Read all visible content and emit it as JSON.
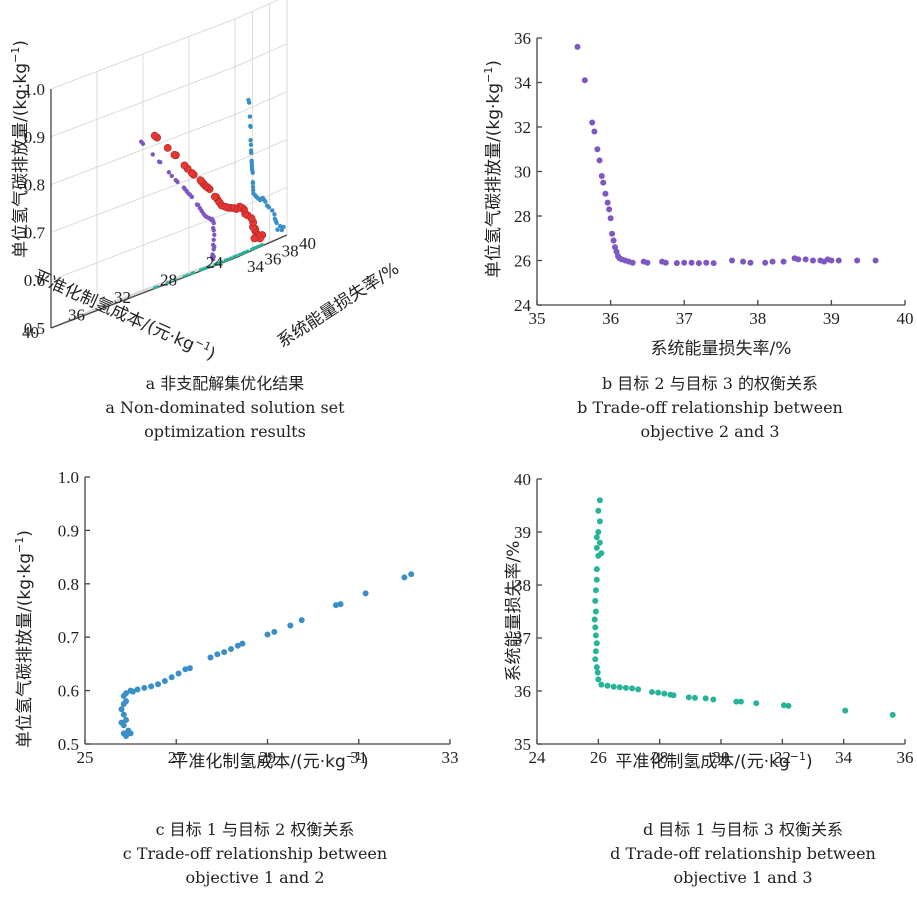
{
  "chart_data": [
    {
      "id": "a",
      "type": "scatter3d",
      "xlabel": "系统能量损失率/%",
      "ylabel": "平准化制氢成本/(元·kg",
      "zlabel": "单位氢气碳排放量/(kg·kg",
      "label_superscript": "−1",
      "x_ticks": [
        "34",
        "36",
        "38",
        "40"
      ],
      "y_ticks": [
        "24",
        "28",
        "32",
        "36",
        "40"
      ],
      "z_ticks": [
        "0.5",
        "0.6",
        "0.7",
        "0.8",
        "0.9",
        "1.0"
      ],
      "xlim": [
        34,
        40
      ],
      "ylim": [
        24,
        40
      ],
      "zlim": [
        0.5,
        1.0
      ],
      "caption": [
        "a  非支配解集优化结果",
        "a  Non-dominated solution set",
        "optimization results"
      ],
      "colors": {
        "points": "#e53935",
        "proj_x": "#7e57c2",
        "proj_y": "#3a8fc9",
        "proj_floor": "#26b39a"
      }
    },
    {
      "id": "b",
      "type": "scatter",
      "xlabel": "系统能量损失率/%",
      "ylabel": "单位氢气碳排放量/(kg·kg",
      "label_superscript": "−1",
      "x_ticks": [
        "35",
        "36",
        "37",
        "38",
        "39",
        "40"
      ],
      "y_ticks": [
        "24",
        "26",
        "28",
        "30",
        "32",
        "34",
        "36"
      ],
      "xlim": [
        35,
        40
      ],
      "ylim": [
        24,
        36
      ],
      "color": "#7e57c2",
      "points": [
        [
          35.55,
          35.6
        ],
        [
          35.65,
          34.1
        ],
        [
          35.75,
          32.2
        ],
        [
          35.78,
          31.8
        ],
        [
          35.82,
          31.0
        ],
        [
          35.85,
          30.5
        ],
        [
          35.88,
          29.8
        ],
        [
          35.9,
          29.5
        ],
        [
          35.93,
          29.0
        ],
        [
          35.96,
          28.6
        ],
        [
          35.98,
          28.3
        ],
        [
          36.0,
          27.9
        ],
        [
          36.02,
          27.2
        ],
        [
          36.04,
          26.9
        ],
        [
          36.06,
          26.6
        ],
        [
          36.08,
          26.4
        ],
        [
          36.1,
          26.2
        ],
        [
          36.12,
          26.1
        ],
        [
          36.15,
          26.05
        ],
        [
          36.2,
          26.0
        ],
        [
          36.25,
          25.95
        ],
        [
          36.3,
          25.9
        ],
        [
          36.45,
          25.95
        ],
        [
          36.5,
          25.9
        ],
        [
          36.7,
          25.95
        ],
        [
          36.75,
          25.9
        ],
        [
          36.9,
          25.88
        ],
        [
          37.0,
          25.9
        ],
        [
          37.1,
          25.9
        ],
        [
          37.2,
          25.88
        ],
        [
          37.3,
          25.9
        ],
        [
          37.4,
          25.88
        ],
        [
          37.65,
          26.0
        ],
        [
          37.8,
          25.95
        ],
        [
          37.9,
          25.9
        ],
        [
          38.1,
          25.9
        ],
        [
          38.2,
          25.95
        ],
        [
          38.35,
          25.95
        ],
        [
          38.5,
          26.1
        ],
        [
          38.55,
          26.05
        ],
        [
          38.65,
          26.05
        ],
        [
          38.75,
          26.0
        ],
        [
          38.85,
          26.0
        ],
        [
          38.9,
          25.95
        ],
        [
          38.95,
          26.05
        ],
        [
          39.0,
          26.0
        ],
        [
          39.1,
          26.0
        ],
        [
          39.35,
          26.0
        ],
        [
          39.6,
          26.0
        ]
      ],
      "caption": [
        "b  目标 2 与目标 3 的权衡关系",
        "b  Trade-off relationship between",
        "objective 2 and 3"
      ]
    },
    {
      "id": "c",
      "type": "scatter",
      "xlabel": "平准化制氢成本/(元·kg",
      "ylabel": "单位氢气碳排放量/(kg·kg",
      "label_superscript": "−1",
      "x_ticks": [
        "25",
        "27",
        "29",
        "31",
        "33"
      ],
      "y_ticks": [
        "0.5",
        "0.6",
        "0.7",
        "0.8",
        "0.9",
        "1.0"
      ],
      "xlim": [
        25,
        33
      ],
      "ylim": [
        0.5,
        1.0
      ],
      "color": "#3a8fc9",
      "points": [
        [
          25.85,
          0.52
        ],
        [
          25.9,
          0.515
        ],
        [
          25.95,
          0.525
        ],
        [
          26.0,
          0.52
        ],
        [
          25.85,
          0.535
        ],
        [
          25.8,
          0.54
        ],
        [
          25.9,
          0.545
        ],
        [
          25.85,
          0.555
        ],
        [
          25.8,
          0.565
        ],
        [
          25.85,
          0.575
        ],
        [
          25.9,
          0.58
        ],
        [
          25.85,
          0.59
        ],
        [
          25.9,
          0.595
        ],
        [
          26.0,
          0.6
        ],
        [
          26.05,
          0.598
        ],
        [
          26.15,
          0.602
        ],
        [
          26.3,
          0.605
        ],
        [
          26.45,
          0.608
        ],
        [
          26.6,
          0.612
        ],
        [
          26.75,
          0.618
        ],
        [
          26.9,
          0.625
        ],
        [
          27.05,
          0.632
        ],
        [
          27.2,
          0.64
        ],
        [
          27.3,
          0.642
        ],
        [
          27.75,
          0.662
        ],
        [
          27.9,
          0.668
        ],
        [
          28.05,
          0.672
        ],
        [
          28.2,
          0.678
        ],
        [
          28.35,
          0.684
        ],
        [
          28.45,
          0.688
        ],
        [
          29.0,
          0.705
        ],
        [
          29.15,
          0.71
        ],
        [
          29.5,
          0.722
        ],
        [
          29.75,
          0.732
        ],
        [
          30.5,
          0.76
        ],
        [
          30.6,
          0.762
        ],
        [
          31.15,
          0.782
        ],
        [
          32.0,
          0.812
        ],
        [
          32.15,
          0.818
        ]
      ],
      "caption": [
        "c  目标 1 与目标 2 权衡关系",
        "c  Trade-off relationship between",
        "objective 1 and 2"
      ]
    },
    {
      "id": "d",
      "type": "scatter",
      "xlabel": "平准化制氢成本/(元·kg",
      "ylabel": "系统能量损失率/%",
      "label_superscript": "−1",
      "x_ticks": [
        "24",
        "26",
        "28",
        "30",
        "32",
        "34",
        "36"
      ],
      "y_ticks": [
        "35",
        "36",
        "37",
        "38",
        "39",
        "40"
      ],
      "xlim": [
        24,
        36
      ],
      "ylim": [
        35,
        40
      ],
      "color": "#26b39a",
      "points": [
        [
          26.05,
          39.6
        ],
        [
          26.0,
          39.4
        ],
        [
          26.05,
          39.2
        ],
        [
          26.0,
          39.0
        ],
        [
          25.95,
          38.9
        ],
        [
          26.05,
          38.8
        ],
        [
          25.95,
          38.7
        ],
        [
          26.1,
          38.6
        ],
        [
          26.0,
          38.55
        ],
        [
          25.95,
          38.3
        ],
        [
          25.95,
          38.1
        ],
        [
          25.92,
          37.9
        ],
        [
          25.9,
          37.7
        ],
        [
          25.92,
          37.5
        ],
        [
          25.88,
          37.35
        ],
        [
          25.9,
          37.2
        ],
        [
          25.92,
          37.05
        ],
        [
          25.95,
          36.9
        ],
        [
          25.92,
          36.75
        ],
        [
          25.9,
          36.6
        ],
        [
          25.95,
          36.45
        ],
        [
          25.98,
          36.35
        ],
        [
          26.0,
          36.22
        ],
        [
          26.1,
          36.12
        ],
        [
          26.3,
          36.1
        ],
        [
          26.5,
          36.08
        ],
        [
          26.7,
          36.07
        ],
        [
          26.9,
          36.06
        ],
        [
          27.1,
          36.05
        ],
        [
          27.3,
          36.03
        ],
        [
          27.75,
          35.98
        ],
        [
          27.95,
          35.97
        ],
        [
          28.15,
          35.95
        ],
        [
          28.35,
          35.93
        ],
        [
          28.45,
          35.92
        ],
        [
          28.95,
          35.88
        ],
        [
          29.15,
          35.87
        ],
        [
          29.5,
          35.86
        ],
        [
          29.75,
          35.84
        ],
        [
          30.5,
          35.8
        ],
        [
          30.65,
          35.8
        ],
        [
          31.15,
          35.77
        ],
        [
          32.05,
          35.73
        ],
        [
          32.2,
          35.72
        ],
        [
          34.05,
          35.63
        ],
        [
          35.6,
          35.55
        ]
      ],
      "caption": [
        "d  目标 1 与目标 3 权衡关系",
        "d  Trade-off relationship between",
        "objective 1 and 3"
      ]
    }
  ]
}
